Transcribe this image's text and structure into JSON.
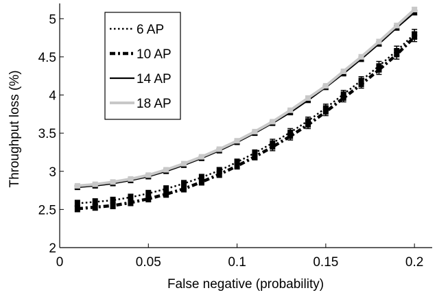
{
  "chart_data": {
    "type": "line",
    "xlabel": "False negative (probability)",
    "ylabel": "Throughput loss (%)",
    "xlim": [
      0,
      0.21
    ],
    "ylim": [
      2,
      5.2
    ],
    "x_ticks": [
      0,
      0.05,
      0.1,
      0.15,
      0.2
    ],
    "x_tick_labels": [
      "0",
      "0.05",
      "0.1",
      "0.15",
      "0.2"
    ],
    "y_ticks": [
      2,
      2.5,
      3,
      3.5,
      4,
      4.5,
      5
    ],
    "y_tick_labels": [
      "2",
      "2.5",
      "3",
      "3.5",
      "4",
      "4.5",
      "5"
    ],
    "grid": false,
    "legend_placement": "top-left",
    "x": [
      0.01,
      0.02,
      0.03,
      0.04,
      0.05,
      0.06,
      0.07,
      0.08,
      0.09,
      0.1,
      0.11,
      0.12,
      0.13,
      0.14,
      0.15,
      0.16,
      0.17,
      0.18,
      0.19,
      0.2
    ],
    "series": [
      {
        "name": "6 AP",
        "style": "dotted",
        "color": "#000000",
        "values": [
          2.58,
          2.6,
          2.62,
          2.66,
          2.71,
          2.77,
          2.84,
          2.92,
          3.01,
          3.12,
          3.24,
          3.37,
          3.51,
          3.66,
          3.83,
          4.01,
          4.19,
          4.38,
          4.58,
          4.8
        ],
        "error": [
          0.04,
          0.04,
          0.04,
          0.04,
          0.04,
          0.04,
          0.04,
          0.04,
          0.04,
          0.04,
          0.04,
          0.05,
          0.05,
          0.05,
          0.05,
          0.05,
          0.05,
          0.06,
          0.06,
          0.06
        ]
      },
      {
        "name": "10 AP",
        "style": "dash-dot",
        "color": "#000000",
        "values": [
          2.51,
          2.53,
          2.55,
          2.59,
          2.64,
          2.7,
          2.77,
          2.86,
          2.96,
          3.07,
          3.19,
          3.32,
          3.46,
          3.61,
          3.78,
          3.96,
          4.14,
          4.33,
          4.53,
          4.76
        ],
        "error": [
          0.04,
          0.04,
          0.04,
          0.04,
          0.04,
          0.04,
          0.04,
          0.04,
          0.04,
          0.04,
          0.04,
          0.05,
          0.05,
          0.05,
          0.05,
          0.05,
          0.05,
          0.06,
          0.06,
          0.06
        ]
      },
      {
        "name": "14 AP",
        "style": "solid",
        "color": "#000000",
        "values": [
          2.79,
          2.81,
          2.84,
          2.88,
          2.93,
          3.0,
          3.08,
          3.17,
          3.27,
          3.38,
          3.5,
          3.63,
          3.77,
          3.93,
          4.1,
          4.28,
          4.47,
          4.67,
          4.88,
          5.08
        ],
        "error": [
          0.02,
          0.02,
          0.02,
          0.02,
          0.02,
          0.02,
          0.02,
          0.02,
          0.02,
          0.02,
          0.02,
          0.02,
          0.02,
          0.02,
          0.02,
          0.02,
          0.03,
          0.03,
          0.03,
          0.03
        ]
      },
      {
        "name": "18 AP",
        "style": "solid",
        "color": "#c8c8c8",
        "values": [
          2.81,
          2.83,
          2.86,
          2.9,
          2.95,
          3.02,
          3.1,
          3.19,
          3.29,
          3.4,
          3.52,
          3.65,
          3.8,
          3.96,
          4.12,
          4.31,
          4.5,
          4.7,
          4.91,
          5.12
        ],
        "error": [
          0.02,
          0.02,
          0.02,
          0.02,
          0.02,
          0.02,
          0.02,
          0.02,
          0.02,
          0.02,
          0.02,
          0.02,
          0.02,
          0.02,
          0.02,
          0.02,
          0.03,
          0.03,
          0.03,
          0.03
        ]
      }
    ]
  }
}
